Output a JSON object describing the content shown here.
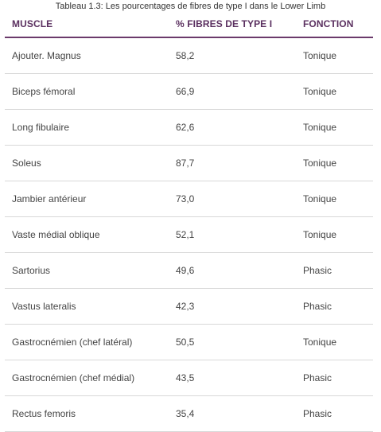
{
  "caption": "Tableau 1.3: Les pourcentages de fibres de type I dans le Lower Limb",
  "table": {
    "headers": [
      "MUSCLE",
      "% FIBRES DE TYPE I",
      "FONCTION"
    ],
    "rows": [
      [
        "Ajouter. Magnus",
        "58,2",
        "Tonique"
      ],
      [
        "Biceps fémoral",
        "66,9",
        "Tonique"
      ],
      [
        "Long fibulaire",
        "62,6",
        "Tonique"
      ],
      [
        "Soleus",
        "87,7",
        "Tonique"
      ],
      [
        "Jambier antérieur",
        "73,0",
        "Tonique"
      ],
      [
        "Vaste médial oblique",
        "52,1",
        "Tonique"
      ],
      [
        "Sartorius",
        "49,6",
        "Phasic"
      ],
      [
        "Vastus lateralis",
        "42,3",
        "Phasic"
      ],
      [
        "Gastrocnémien (chef latéral)",
        "50,5",
        "Tonique"
      ],
      [
        "Gastrocnémien (chef médial)",
        "43,5",
        "Phasic"
      ],
      [
        "Rectus femoris",
        "35,4",
        "Phasic"
      ]
    ]
  },
  "colors": {
    "header_text": "#5a2f5f",
    "header_rule": "#6b3a6b",
    "row_rule": "#d8d8d8"
  }
}
